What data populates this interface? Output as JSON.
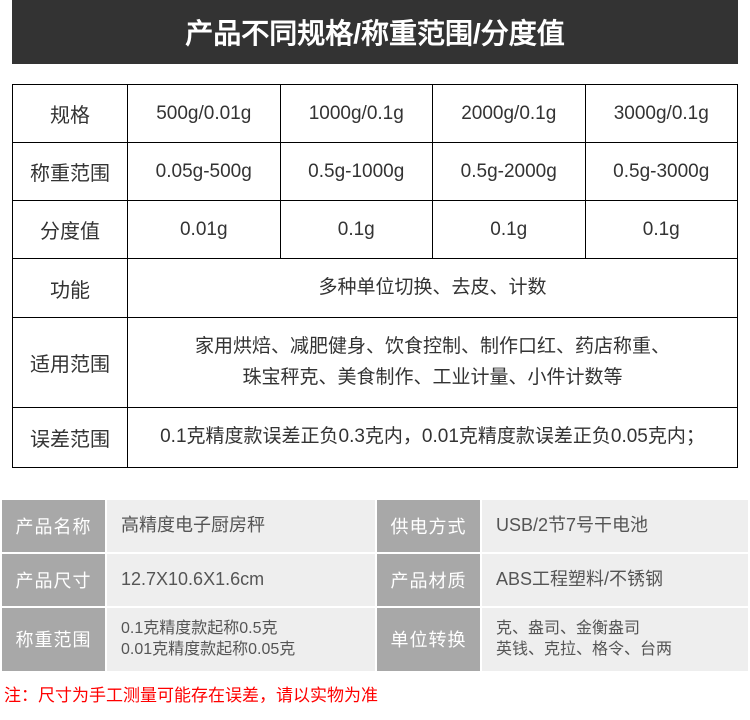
{
  "header": {
    "title": "产品不同规格/称重范围/分度值"
  },
  "spec_table": {
    "rows": [
      {
        "label": "规格",
        "cells": [
          "500g/0.01g",
          "1000g/0.1g",
          "2000g/0.1g",
          "3000g/0.1g"
        ]
      },
      {
        "label": "称重范围",
        "cells": [
          "0.05g‑500g",
          "0.5g‑1000g",
          "0.5g‑2000g",
          "0.5g‑3000g"
        ]
      },
      {
        "label": "分度值",
        "cells": [
          "0.01g",
          "0.1g",
          "0.1g",
          "0.1g"
        ]
      }
    ],
    "merged_rows": [
      {
        "label": "功能",
        "text": "多种单位切换、去皮、计数"
      },
      {
        "label": "适用范围",
        "text": "家用烘焙、减肥健身、饮食控制、制作口红、药店称重、\n珠宝秤克、美食制作、工业计量、小件计数等"
      },
      {
        "label": "误差范围",
        "text": "0.1克精度款误差正负0.3克内，0.01克精度款误差正负0.05克内；"
      }
    ]
  },
  "info_table": {
    "rows": [
      {
        "l1": "产品名称",
        "v1": "高精度电子厨房秤",
        "l2": "供电方式",
        "v2": "USB/2节7号干电池"
      },
      {
        "l1": "产品尺寸",
        "v1": "12.7X10.6X1.6cm",
        "l2": "产品材质",
        "v2": "ABS工程塑料/不锈钢"
      },
      {
        "l1": "称重范围",
        "v1": "0.1克精度款起称0.5克\n0.01克精度款起称0.05克",
        "l2": "单位转换",
        "v2": "克、盎司、金衡盎司\n英钱、克拉、格令、台两"
      }
    ]
  },
  "footnote": "注：尺寸为手工测量可能存在误差，请以实物为准",
  "colors": {
    "header_bg": "#333333",
    "header_fg": "#ffffff",
    "border": "#000000",
    "label_bg": "#a8a8a8",
    "label_fg": "#ffffff",
    "value_bg": "#eeeeee",
    "value_fg": "#555555",
    "note_fg": "#ff0000"
  }
}
